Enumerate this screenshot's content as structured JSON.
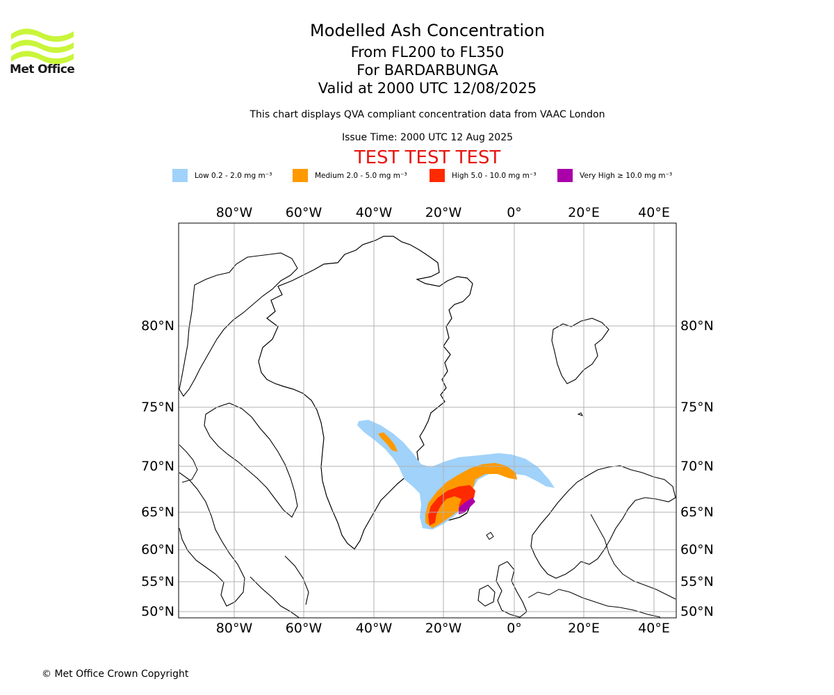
{
  "logo": {
    "brand_name": "Met Office",
    "colors": {
      "waves": "#c9f53a",
      "text": "#1a1a1a"
    }
  },
  "header": {
    "title": "Modelled Ash Concentration",
    "levels": "From FL200 to FL350",
    "volcano": "For BARDARBUNGA",
    "valid": "Valid at 2000 UTC 12/08/2025",
    "description": "This chart displays QVA compliant concentration data from VAAC London",
    "issue_time": "Issue Time: 2000 UTC 12 Aug 2025",
    "test_banner": "TEST TEST TEST"
  },
  "legend": {
    "items": [
      {
        "label": "Low 0.2 - 2.0 mg m⁻³",
        "color": "#a0d2fa"
      },
      {
        "label": "Medium 2.0 - 5.0 mg m⁻³",
        "color": "#ff9900"
      },
      {
        "label": "High 5.0 - 10.0 mg m⁻³",
        "color": "#ff2a00"
      },
      {
        "label": "Very High ≥ 10.0 mg m⁻³",
        "color": "#aa00aa"
      }
    ]
  },
  "map": {
    "region": "North Atlantic / Greenland / Iceland / Scandinavia",
    "lon_labels": [
      "80°W",
      "60°W",
      "40°W",
      "20°W",
      "0°",
      "20°E",
      "40°E"
    ],
    "lat_labels": [
      "80°N",
      "75°N",
      "70°N",
      "65°N",
      "60°N",
      "55°N",
      "50°N"
    ],
    "gridlines": true
  },
  "footer": {
    "copyright": "© Met Office Crown Copyright"
  }
}
